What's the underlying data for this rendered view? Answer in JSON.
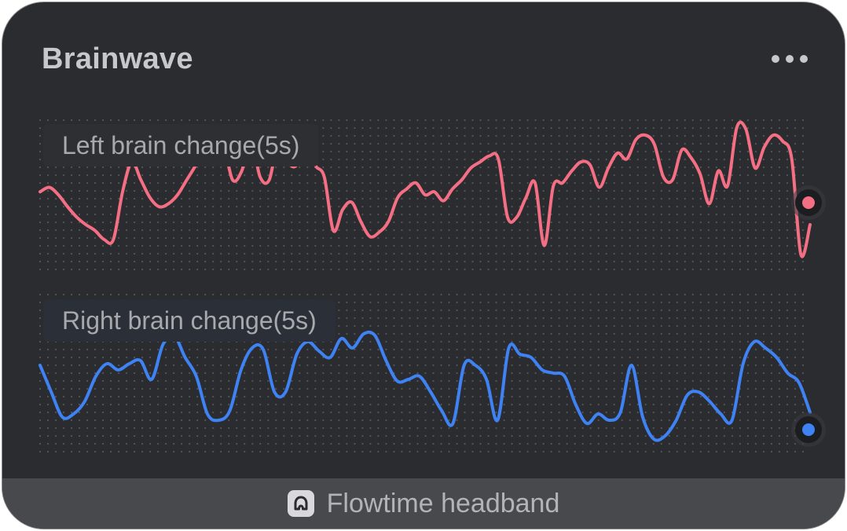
{
  "card": {
    "title": "Brainwave",
    "menu_icon": "more-horizontal-icon"
  },
  "colors": {
    "background": "#2b2c2f",
    "left_series": "#f56f84",
    "right_series": "#3f82f3",
    "footer": "#48494c"
  },
  "chart_data": [
    {
      "type": "line",
      "title": "Left brain change(5s)",
      "grid": "dotted",
      "legend": "top-left",
      "ylim": [
        0,
        1
      ],
      "values": [
        0.52,
        0.55,
        0.5,
        0.42,
        0.35,
        0.3,
        0.26,
        0.2,
        0.2,
        0.52,
        0.72,
        0.6,
        0.48,
        0.42,
        0.44,
        0.5,
        0.6,
        0.7,
        0.82,
        0.88,
        0.84,
        0.6,
        0.66,
        0.87,
        0.62,
        0.6,
        0.86,
        0.72,
        0.7,
        0.88,
        0.7,
        0.62,
        0.26,
        0.4,
        0.45,
        0.32,
        0.22,
        0.25,
        0.32,
        0.48,
        0.54,
        0.58,
        0.5,
        0.52,
        0.46,
        0.54,
        0.6,
        0.68,
        0.72,
        0.76,
        0.74,
        0.35,
        0.35,
        0.48,
        0.58,
        0.16,
        0.56,
        0.58,
        0.66,
        0.72,
        0.7,
        0.55,
        0.68,
        0.78,
        0.74,
        0.87,
        0.9,
        0.84,
        0.62,
        0.6,
        0.8,
        0.75,
        0.64,
        0.44,
        0.66,
        0.56,
        0.95,
        0.94,
        0.68,
        0.82,
        0.9,
        0.86,
        0.74,
        0.1,
        0.3
      ]
    },
    {
      "type": "line",
      "title": "Right brain change(5s)",
      "grid": "dotted",
      "legend": "top-left",
      "ylim": [
        0,
        1
      ],
      "values": [
        0.55,
        0.38,
        0.22,
        0.24,
        0.32,
        0.48,
        0.56,
        0.52,
        0.56,
        0.58,
        0.46,
        0.68,
        0.74,
        0.6,
        0.48,
        0.24,
        0.2,
        0.26,
        0.52,
        0.66,
        0.65,
        0.38,
        0.38,
        0.62,
        0.7,
        0.64,
        0.6,
        0.72,
        0.66,
        0.75,
        0.74,
        0.58,
        0.45,
        0.46,
        0.48,
        0.38,
        0.26,
        0.18,
        0.55,
        0.55,
        0.46,
        0.2,
        0.66,
        0.62,
        0.6,
        0.52,
        0.5,
        0.48,
        0.3,
        0.18,
        0.24,
        0.2,
        0.25,
        0.55,
        0.22,
        0.08,
        0.1,
        0.2,
        0.36,
        0.38,
        0.32,
        0.24,
        0.2,
        0.56,
        0.7,
        0.66,
        0.6,
        0.5,
        0.44,
        0.25
      ]
    }
  ],
  "footer": {
    "device_name": "Flowtime headband",
    "device_icon": "headband-icon"
  }
}
